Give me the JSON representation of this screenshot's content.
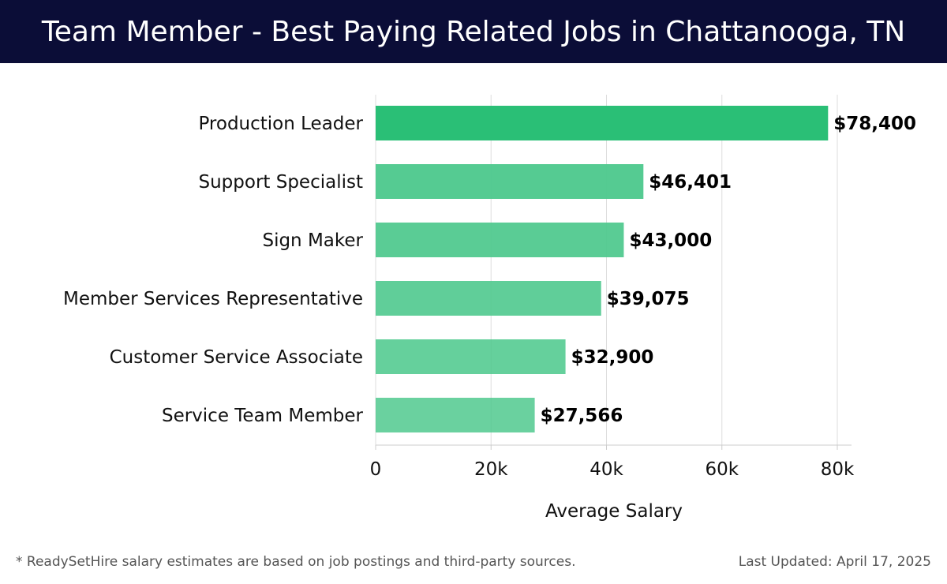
{
  "header": {
    "title": "Team Member - Best Paying Related Jobs in Chattanooga, TN"
  },
  "chart_data": {
    "type": "bar",
    "orientation": "horizontal",
    "title": "Team Member - Best Paying Related Jobs in Chattanooga, TN",
    "xlabel": "Average Salary",
    "ylabel": "",
    "categories": [
      "Production Leader",
      "Support Specialist",
      "Sign Maker",
      "Member Services Representative",
      "Customer Service Associate",
      "Service Team Member"
    ],
    "values": [
      78400,
      46401,
      43000,
      39075,
      32900,
      27566
    ],
    "value_labels": [
      "$78,400",
      "$46,401",
      "$43,000",
      "$39,075",
      "$32,900",
      "$27,566"
    ],
    "xlim": [
      0,
      80000
    ],
    "xticks": [
      0,
      20000,
      40000,
      60000,
      80000
    ],
    "xtick_labels": [
      "0",
      "20k",
      "40k",
      "60k",
      "80k"
    ],
    "grid": true,
    "legend": "none",
    "colors": {
      "highlight_bar": "#2abf76",
      "bar": "#4cc88c",
      "gridline": "#dddddd",
      "axis": "#cccccc",
      "label": "#111111",
      "header_bg": "#0b0d37"
    }
  },
  "footer": {
    "note": "* ReadySetHire salary estimates are based on job postings and third-party sources.",
    "updated": "Last Updated: April 17, 2025"
  }
}
